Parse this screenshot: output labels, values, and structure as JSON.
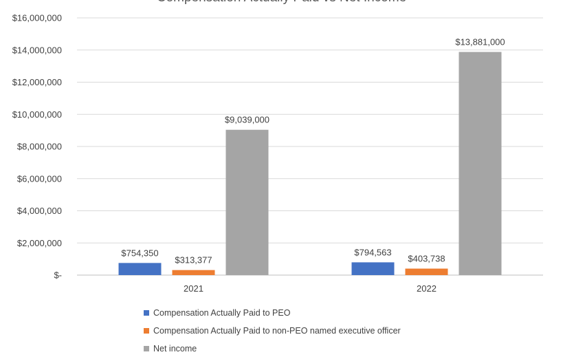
{
  "chart_data": {
    "type": "bar",
    "title": "Compensation Actually Paid vs Net Income",
    "categories": [
      "2021",
      "2022"
    ],
    "series": [
      {
        "name": "Compensation Actually Paid to PEO",
        "color": "#4472C4",
        "values": [
          754350,
          794563
        ],
        "labels": [
          "$754,350",
          "$794,563"
        ]
      },
      {
        "name": "Compensation Actually Paid to non-PEO named executive officer",
        "color": "#ED7D31",
        "values": [
          313377,
          403738
        ],
        "labels": [
          "$313,377",
          "$403,738"
        ]
      },
      {
        "name": "Net income",
        "color": "#A5A5A5",
        "values": [
          9039000,
          13881000
        ],
        "labels": [
          "$9,039,000",
          "$13,881,000"
        ]
      }
    ],
    "yaxis": {
      "min": 0,
      "max": 16000000,
      "ticks": [
        0,
        2000000,
        4000000,
        6000000,
        8000000,
        10000000,
        12000000,
        14000000,
        16000000
      ],
      "tick_labels": [
        "$-",
        "$2,000,000",
        "$4,000,000",
        "$6,000,000",
        "$8,000,000",
        "$10,000,000",
        "$12,000,000",
        "$14,000,000",
        "$16,000,000"
      ]
    },
    "grid": true,
    "legend_position": "bottom",
    "gridline_color": "#D9D9D9"
  }
}
